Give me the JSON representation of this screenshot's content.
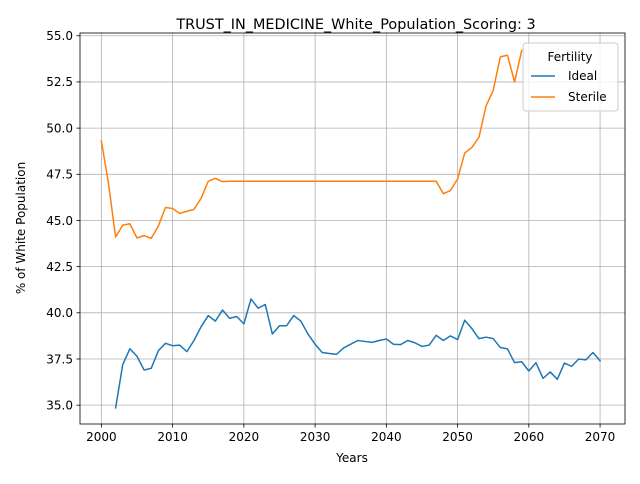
{
  "chart_data": {
    "type": "line",
    "title": "TRUST_IN_MEDICINE_White_Population_Scoring: 3",
    "xlabel": "Years",
    "ylabel": "% of White Population",
    "xlim": [
      1997,
      2073.5
    ],
    "ylim": [
      33.98,
      55.15
    ],
    "x_ticks": [
      2000,
      2010,
      2020,
      2030,
      2040,
      2050,
      2060,
      2070
    ],
    "y_ticks": [
      35.0,
      37.5,
      40.0,
      42.5,
      45.0,
      47.5,
      50.0,
      52.5,
      55.0
    ],
    "x_tick_labels": [
      "2000",
      "2010",
      "2020",
      "2030",
      "2040",
      "2050",
      "2060",
      "2070"
    ],
    "y_tick_labels": [
      "35.0",
      "37.5",
      "40.0",
      "42.5",
      "45.0",
      "47.5",
      "50.0",
      "52.5",
      "55.0"
    ],
    "grid": true,
    "legend": {
      "title": "Fertility",
      "position": "top-right"
    },
    "series": [
      {
        "name": "Ideal",
        "color": "#1f77b4",
        "x": [
          2002,
          2003,
          2004,
          2005,
          2006,
          2007,
          2008,
          2009,
          2010,
          2011,
          2012,
          2013,
          2014,
          2015,
          2016,
          2017,
          2018,
          2019,
          2020,
          2021,
          2022,
          2023,
          2024,
          2025,
          2026,
          2027,
          2028,
          2029,
          2030,
          2031,
          2032,
          2033,
          2034,
          2035,
          2036,
          2037,
          2038,
          2039,
          2040,
          2041,
          2042,
          2043,
          2044,
          2045,
          2046,
          2047,
          2048,
          2049,
          2050,
          2051,
          2052,
          2053,
          2054,
          2055,
          2056,
          2057,
          2058,
          2059,
          2060,
          2061,
          2062,
          2063,
          2064,
          2065,
          2066,
          2067,
          2068,
          2069,
          2070
        ],
        "values": [
          34.85,
          37.2,
          38.05,
          37.65,
          36.9,
          37.0,
          37.95,
          38.35,
          38.22,
          38.25,
          37.9,
          38.5,
          39.25,
          39.85,
          39.55,
          40.15,
          39.7,
          39.8,
          39.4,
          40.75,
          40.25,
          40.45,
          38.85,
          39.3,
          39.3,
          39.85,
          39.55,
          38.85,
          38.3,
          37.85,
          37.8,
          37.75,
          38.1,
          38.3,
          38.5,
          38.45,
          38.4,
          38.5,
          38.58,
          38.3,
          38.28,
          38.5,
          38.38,
          38.18,
          38.25,
          38.78,
          38.5,
          38.75,
          38.55,
          39.6,
          39.15,
          38.6,
          38.68,
          38.6,
          38.12,
          38.05,
          37.3,
          37.35,
          36.85,
          37.3,
          36.45,
          36.8,
          36.4,
          37.28,
          37.1,
          37.5,
          37.45,
          37.85,
          37.4
        ]
      },
      {
        "name": "Sterile",
        "color": "#ff7f0e",
        "x": [
          2000,
          2001,
          2002,
          2003,
          2004,
          2005,
          2006,
          2007,
          2008,
          2009,
          2010,
          2011,
          2012,
          2013,
          2014,
          2015,
          2016,
          2017,
          2018,
          2019,
          2020,
          2021,
          2022,
          2023,
          2024,
          2025,
          2026,
          2027,
          2028,
          2029,
          2030,
          2031,
          2032,
          2033,
          2034,
          2035,
          2036,
          2037,
          2038,
          2039,
          2040,
          2041,
          2042,
          2043,
          2044,
          2045,
          2046,
          2047,
          2048,
          2049,
          2050,
          2051,
          2052,
          2053,
          2054,
          2055,
          2056,
          2057,
          2058,
          2059
        ],
        "values": [
          49.3,
          47.0,
          44.1,
          44.75,
          44.82,
          44.05,
          44.18,
          44.03,
          44.7,
          45.7,
          45.65,
          45.38,
          45.5,
          45.6,
          46.2,
          47.12,
          47.28,
          47.1,
          47.12,
          47.12,
          47.12,
          47.12,
          47.12,
          47.12,
          47.12,
          47.12,
          47.12,
          47.12,
          47.12,
          47.12,
          47.12,
          47.12,
          47.12,
          47.12,
          47.12,
          47.12,
          47.12,
          47.12,
          47.12,
          47.12,
          47.12,
          47.12,
          47.12,
          47.12,
          47.12,
          47.12,
          47.12,
          47.12,
          46.45,
          46.62,
          47.25,
          48.65,
          48.95,
          49.5,
          51.2,
          52.05,
          53.85,
          53.95,
          52.5,
          54.2
        ]
      }
    ]
  }
}
